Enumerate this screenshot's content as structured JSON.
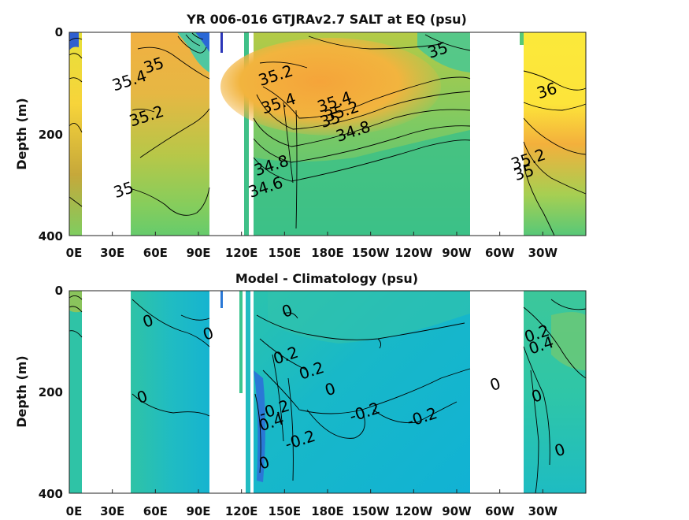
{
  "chart_data": [
    {
      "type": "heatmap",
      "title": "YR 006-016 GTJRAv2.7 SALT at EQ (psu)",
      "ylabel": "Depth (m)",
      "xlabel": "",
      "x_ticks": [
        "0E",
        "30E",
        "60E",
        "90E",
        "120E",
        "150E",
        "180E",
        "150W",
        "120W",
        "90W",
        "60W",
        "30W"
      ],
      "y_ticks": [
        "0",
        "200",
        "400"
      ],
      "xlim_deg_east": [
        0,
        360
      ],
      "ylim_m": [
        0,
        400
      ],
      "y_reversed": true,
      "grid": false,
      "colorscale": [
        "#3b1fb0",
        "#2a7fd8",
        "#1fb8c8",
        "#4cc98a",
        "#a6cf52",
        "#f0ad3a",
        "#fdf13a"
      ],
      "contour_labels": [
        {
          "text": "35",
          "lon": 60,
          "depth": 75
        },
        {
          "text": "35.4",
          "lon": 43,
          "depth": 105
        },
        {
          "text": "35.2",
          "lon": 55,
          "depth": 175
        },
        {
          "text": "35",
          "lon": 39,
          "depth": 320
        },
        {
          "text": "35.2",
          "lon": 145,
          "depth": 95
        },
        {
          "text": "35.4",
          "lon": 147,
          "depth": 150
        },
        {
          "text": "35.4",
          "lon": 186,
          "depth": 147
        },
        {
          "text": "35.2",
          "lon": 191,
          "depth": 166
        },
        {
          "text": "35",
          "lon": 183,
          "depth": 182
        },
        {
          "text": "34.8",
          "lon": 199,
          "depth": 205
        },
        {
          "text": "34.8",
          "lon": 142,
          "depth": 272
        },
        {
          "text": "34.6",
          "lon": 138,
          "depth": 315
        },
        {
          "text": "35",
          "lon": 258,
          "depth": 45
        },
        {
          "text": "36",
          "lon": 334,
          "depth": 125
        },
        {
          "text": "35.2",
          "lon": 321,
          "depth": 260
        },
        {
          "text": "35",
          "lon": 318,
          "depth": 286
        }
      ]
    },
    {
      "type": "heatmap",
      "title": "Model - Climatology (psu)",
      "ylabel": "Depth (m)",
      "xlabel": "",
      "x_ticks": [
        "0E",
        "30E",
        "60E",
        "90E",
        "120E",
        "150E",
        "180E",
        "150W",
        "120W",
        "90W",
        "60W",
        "30W"
      ],
      "y_ticks": [
        "0",
        "200",
        "400"
      ],
      "xlim_deg_east": [
        0,
        360
      ],
      "ylim_m": [
        0,
        400
      ],
      "y_reversed": true,
      "grid": false,
      "colorscale": [
        "#3b1fb0",
        "#2a7fd8",
        "#1fb8c8",
        "#4cc98a",
        "#a6cf52",
        "#f0ad3a",
        "#fdf13a"
      ],
      "contour_labels": [
        {
          "text": "0",
          "lon": 56,
          "depth": 70
        },
        {
          "text": "0",
          "lon": 98,
          "depth": 95
        },
        {
          "text": "0",
          "lon": 153,
          "depth": 50
        },
        {
          "text": "0.2",
          "lon": 152,
          "depth": 138
        },
        {
          "text": "0.2",
          "lon": 170,
          "depth": 168
        },
        {
          "text": "0",
          "lon": 183,
          "depth": 205
        },
        {
          "text": "0",
          "lon": 52,
          "depth": 220
        },
        {
          "text": "-0.2",
          "lon": 144,
          "depth": 245
        },
        {
          "text": "0.4",
          "lon": 142,
          "depth": 270
        },
        {
          "text": "-0.2",
          "lon": 162,
          "depth": 305
        },
        {
          "text": "0",
          "lon": 137,
          "depth": 350
        },
        {
          "text": "-0.2",
          "lon": 207,
          "depth": 250
        },
        {
          "text": "-0.2",
          "lon": 247,
          "depth": 260
        },
        {
          "text": "0",
          "lon": 298,
          "depth": 195
        },
        {
          "text": "0.2",
          "lon": 327,
          "depth": 95
        },
        {
          "text": "0.4",
          "lon": 330,
          "depth": 118
        },
        {
          "text": "0",
          "lon": 327,
          "depth": 218
        },
        {
          "text": "0",
          "lon": 343,
          "depth": 325
        }
      ]
    }
  ]
}
